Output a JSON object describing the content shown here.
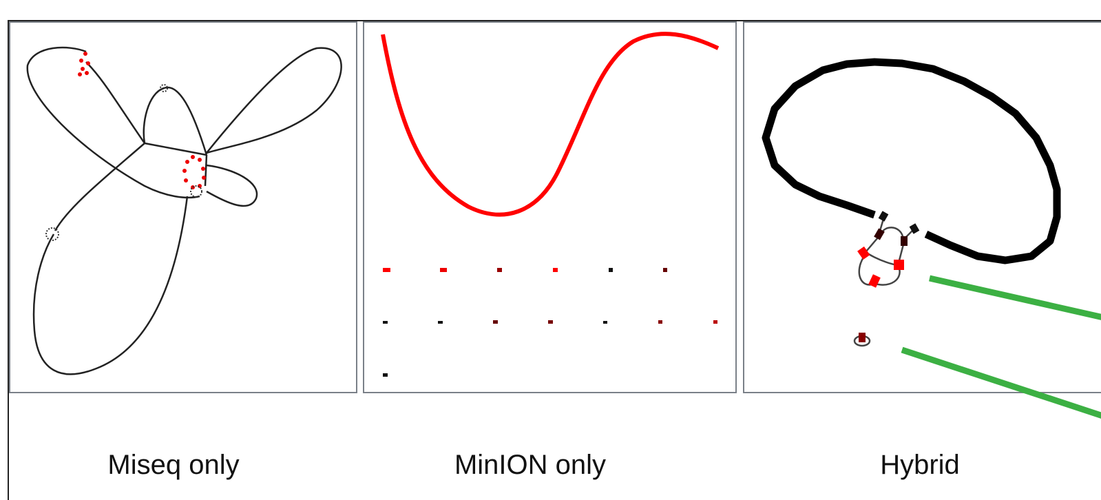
{
  "panels": [
    {
      "label": "Miseq only"
    },
    {
      "label": "MinION only"
    },
    {
      "label": "Hybrid"
    }
  ]
}
